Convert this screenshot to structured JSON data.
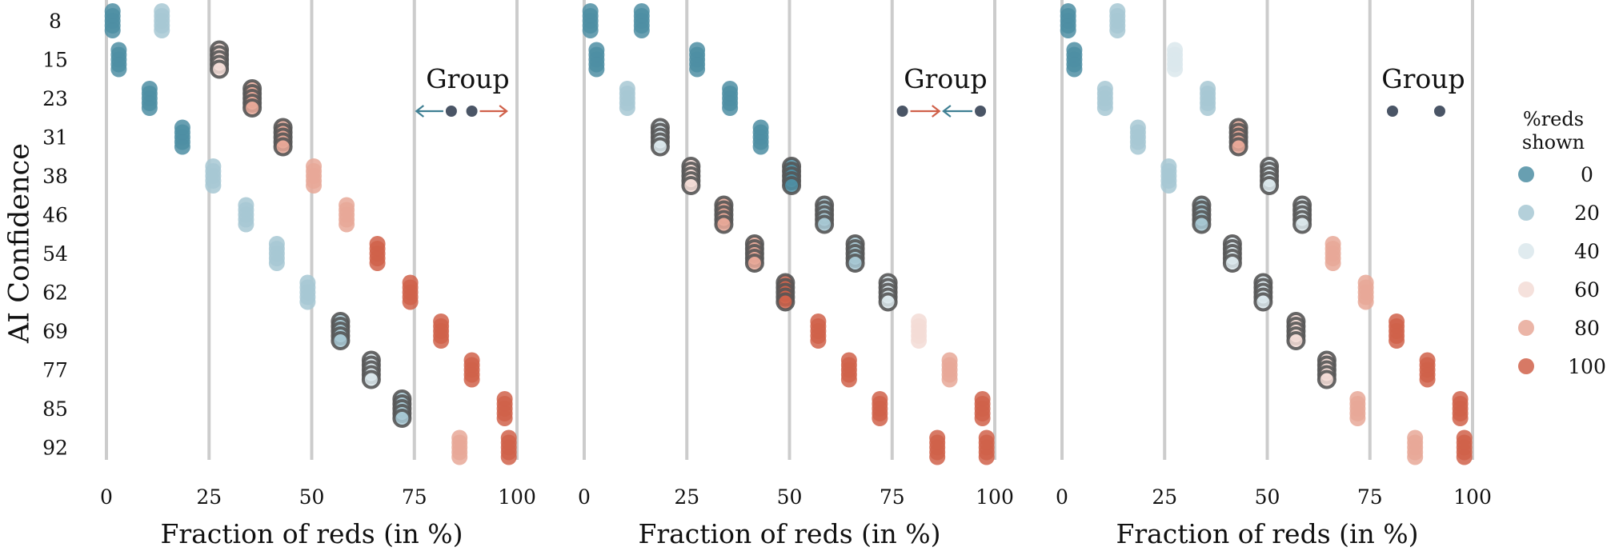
{
  "chart_data": {
    "type": "scatter",
    "y_title": "AI Confidence",
    "y_categories": [
      "8",
      "15",
      "23",
      "31",
      "38",
      "46",
      "54",
      "62",
      "69",
      "77",
      "85",
      "92"
    ],
    "x_title": "Fraction of reds (in %)",
    "x_ticks": [
      "0",
      "25",
      "50",
      "75",
      "100"
    ],
    "xlim": [
      0,
      100
    ],
    "legend": {
      "title_lines": [
        "%reds",
        "shown"
      ],
      "entries": [
        {
          "label": "0",
          "color": "#4e8ea3"
        },
        {
          "label": "20",
          "color": "#a7c8d3"
        },
        {
          "label": "40",
          "color": "#dbe7ec"
        },
        {
          "label": "60",
          "color": "#f3dcd6"
        },
        {
          "label": "80",
          "color": "#e8a898"
        },
        {
          "label": "100",
          "color": "#d0614a"
        }
      ]
    },
    "colors": {
      "c0": "#4e8ea3",
      "c20": "#a7c8d3",
      "c40": "#dbe7ec",
      "c60": "#f3dcd6",
      "c80": "#e8a898",
      "c100": "#d0614a",
      "group_ring": "#555555",
      "group_dot": "#4a5566",
      "arrow_blue": "#3f7f93",
      "arrow_red": "#d0614a",
      "gridline": "#cccccc"
    },
    "panels": [
      {
        "group_label": "Group",
        "arrow_style": "outward",
        "points": [
          {
            "conf": "8",
            "x": 1.5,
            "color": 0,
            "ring": false
          },
          {
            "conf": "8",
            "x": 13.5,
            "color": 20,
            "ring": false
          },
          {
            "conf": "15",
            "x": 3,
            "color": 0,
            "ring": false
          },
          {
            "conf": "15",
            "x": 27.5,
            "color": 60,
            "ring": true
          },
          {
            "conf": "23",
            "x": 10.5,
            "color": 0,
            "ring": false
          },
          {
            "conf": "23",
            "x": 35.5,
            "color": 80,
            "ring": true
          },
          {
            "conf": "31",
            "x": 18.5,
            "color": 0,
            "ring": false
          },
          {
            "conf": "31",
            "x": 43,
            "color": 80,
            "ring": true
          },
          {
            "conf": "38",
            "x": 26,
            "color": 20,
            "ring": false
          },
          {
            "conf": "38",
            "x": 50.5,
            "color": 80,
            "ring": false
          },
          {
            "conf": "46",
            "x": 34,
            "color": 20,
            "ring": false
          },
          {
            "conf": "46",
            "x": 58.5,
            "color": 80,
            "ring": false
          },
          {
            "conf": "54",
            "x": 41.5,
            "color": 20,
            "ring": false
          },
          {
            "conf": "54",
            "x": 66,
            "color": 100,
            "ring": false
          },
          {
            "conf": "62",
            "x": 49,
            "color": 20,
            "ring": false
          },
          {
            "conf": "62",
            "x": 74,
            "color": 100,
            "ring": false
          },
          {
            "conf": "69",
            "x": 57,
            "color": 20,
            "ring": true
          },
          {
            "conf": "69",
            "x": 81.5,
            "color": 100,
            "ring": false
          },
          {
            "conf": "77",
            "x": 64.5,
            "color": 40,
            "ring": true
          },
          {
            "conf": "77",
            "x": 89,
            "color": 100,
            "ring": false
          },
          {
            "conf": "85",
            "x": 72,
            "color": 20,
            "ring": true
          },
          {
            "conf": "85",
            "x": 97,
            "color": 100,
            "ring": false
          },
          {
            "conf": "92",
            "x": 86,
            "color": 80,
            "ring": false
          },
          {
            "conf": "92",
            "x": 98,
            "color": 100,
            "ring": false
          }
        ]
      },
      {
        "group_label": "Group",
        "arrow_style": "inward",
        "points": [
          {
            "conf": "8",
            "x": 1.5,
            "color": 0,
            "ring": false
          },
          {
            "conf": "8",
            "x": 14,
            "color": 0,
            "ring": false
          },
          {
            "conf": "15",
            "x": 3,
            "color": 0,
            "ring": false
          },
          {
            "conf": "15",
            "x": 27.5,
            "color": 0,
            "ring": false
          },
          {
            "conf": "23",
            "x": 10.5,
            "color": 20,
            "ring": false
          },
          {
            "conf": "23",
            "x": 35.5,
            "color": 0,
            "ring": false
          },
          {
            "conf": "31",
            "x": 18.5,
            "color": 40,
            "ring": true
          },
          {
            "conf": "31",
            "x": 43,
            "color": 0,
            "ring": false
          },
          {
            "conf": "38",
            "x": 26,
            "color": 60,
            "ring": true
          },
          {
            "conf": "38",
            "x": 50.5,
            "color": 0,
            "ring": true
          },
          {
            "conf": "46",
            "x": 34,
            "color": 80,
            "ring": true
          },
          {
            "conf": "46",
            "x": 58.5,
            "color": 20,
            "ring": true
          },
          {
            "conf": "54",
            "x": 41.5,
            "color": 80,
            "ring": true
          },
          {
            "conf": "54",
            "x": 66,
            "color": 20,
            "ring": true
          },
          {
            "conf": "62",
            "x": 49,
            "color": 100,
            "ring": true
          },
          {
            "conf": "62",
            "x": 74,
            "color": 40,
            "ring": true
          },
          {
            "conf": "69",
            "x": 57,
            "color": 100,
            "ring": false
          },
          {
            "conf": "69",
            "x": 81.5,
            "color": 60,
            "ring": false
          },
          {
            "conf": "77",
            "x": 64.5,
            "color": 100,
            "ring": false
          },
          {
            "conf": "77",
            "x": 89,
            "color": 80,
            "ring": false
          },
          {
            "conf": "85",
            "x": 72,
            "color": 100,
            "ring": false
          },
          {
            "conf": "85",
            "x": 97,
            "color": 100,
            "ring": false
          },
          {
            "conf": "92",
            "x": 86,
            "color": 100,
            "ring": false
          },
          {
            "conf": "92",
            "x": 98,
            "color": 100,
            "ring": false
          }
        ]
      },
      {
        "group_label": "Group",
        "arrow_style": "none",
        "points": [
          {
            "conf": "8",
            "x": 1.5,
            "color": 0,
            "ring": false
          },
          {
            "conf": "8",
            "x": 13.5,
            "color": 20,
            "ring": false
          },
          {
            "conf": "15",
            "x": 3,
            "color": 0,
            "ring": false
          },
          {
            "conf": "15",
            "x": 27.5,
            "color": 40,
            "ring": false
          },
          {
            "conf": "23",
            "x": 10.5,
            "color": 20,
            "ring": false
          },
          {
            "conf": "23",
            "x": 35.5,
            "color": 20,
            "ring": false
          },
          {
            "conf": "31",
            "x": 18.5,
            "color": 20,
            "ring": false
          },
          {
            "conf": "31",
            "x": 43,
            "color": 80,
            "ring": true
          },
          {
            "conf": "38",
            "x": 26,
            "color": 20,
            "ring": false
          },
          {
            "conf": "38",
            "x": 50.5,
            "color": 40,
            "ring": true
          },
          {
            "conf": "46",
            "x": 34,
            "color": 20,
            "ring": true
          },
          {
            "conf": "46",
            "x": 58.5,
            "color": 40,
            "ring": true
          },
          {
            "conf": "54",
            "x": 41.5,
            "color": 40,
            "ring": true
          },
          {
            "conf": "54",
            "x": 66,
            "color": 80,
            "ring": false
          },
          {
            "conf": "62",
            "x": 49,
            "color": 40,
            "ring": true
          },
          {
            "conf": "62",
            "x": 74,
            "color": 80,
            "ring": false
          },
          {
            "conf": "69",
            "x": 57,
            "color": 60,
            "ring": true
          },
          {
            "conf": "69",
            "x": 81.5,
            "color": 100,
            "ring": false
          },
          {
            "conf": "77",
            "x": 64.5,
            "color": 60,
            "ring": true
          },
          {
            "conf": "77",
            "x": 89,
            "color": 100,
            "ring": false
          },
          {
            "conf": "85",
            "x": 72,
            "color": 80,
            "ring": false
          },
          {
            "conf": "85",
            "x": 97,
            "color": 100,
            "ring": false
          },
          {
            "conf": "92",
            "x": 86,
            "color": 80,
            "ring": false
          },
          {
            "conf": "92",
            "x": 98,
            "color": 100,
            "ring": false
          }
        ]
      }
    ]
  }
}
